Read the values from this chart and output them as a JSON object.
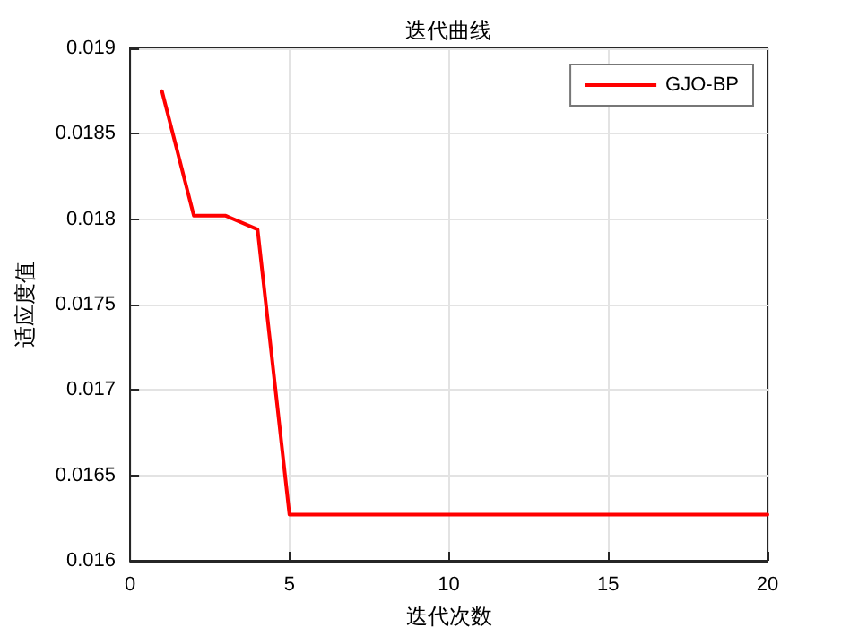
{
  "chart_data": {
    "type": "line",
    "title": "迭代曲线",
    "xlabel": "迭代次数",
    "ylabel": "适应度值",
    "x": [
      1,
      2,
      3,
      4,
      5,
      6,
      7,
      8,
      9,
      10,
      11,
      12,
      13,
      14,
      15,
      16,
      17,
      18,
      19,
      20
    ],
    "series": [
      {
        "name": "GJO-BP",
        "color": "#ff0000",
        "values": [
          0.01875,
          0.01802,
          0.01802,
          0.01794,
          0.01627,
          0.01627,
          0.01627,
          0.01627,
          0.01627,
          0.01627,
          0.01627,
          0.01627,
          0.01627,
          0.01627,
          0.01627,
          0.01627,
          0.01627,
          0.01627,
          0.01627,
          0.01627
        ]
      }
    ],
    "xlim": [
      0,
      20
    ],
    "xticks": [
      0,
      5,
      10,
      15,
      20
    ],
    "ylim": [
      0.016,
      0.019
    ],
    "yticks": [
      0.016,
      0.0165,
      0.017,
      0.0175,
      0.018,
      0.0185,
      0.019
    ],
    "grid": true,
    "legend": "top right",
    "marker": "none",
    "line_style": "solid"
  }
}
